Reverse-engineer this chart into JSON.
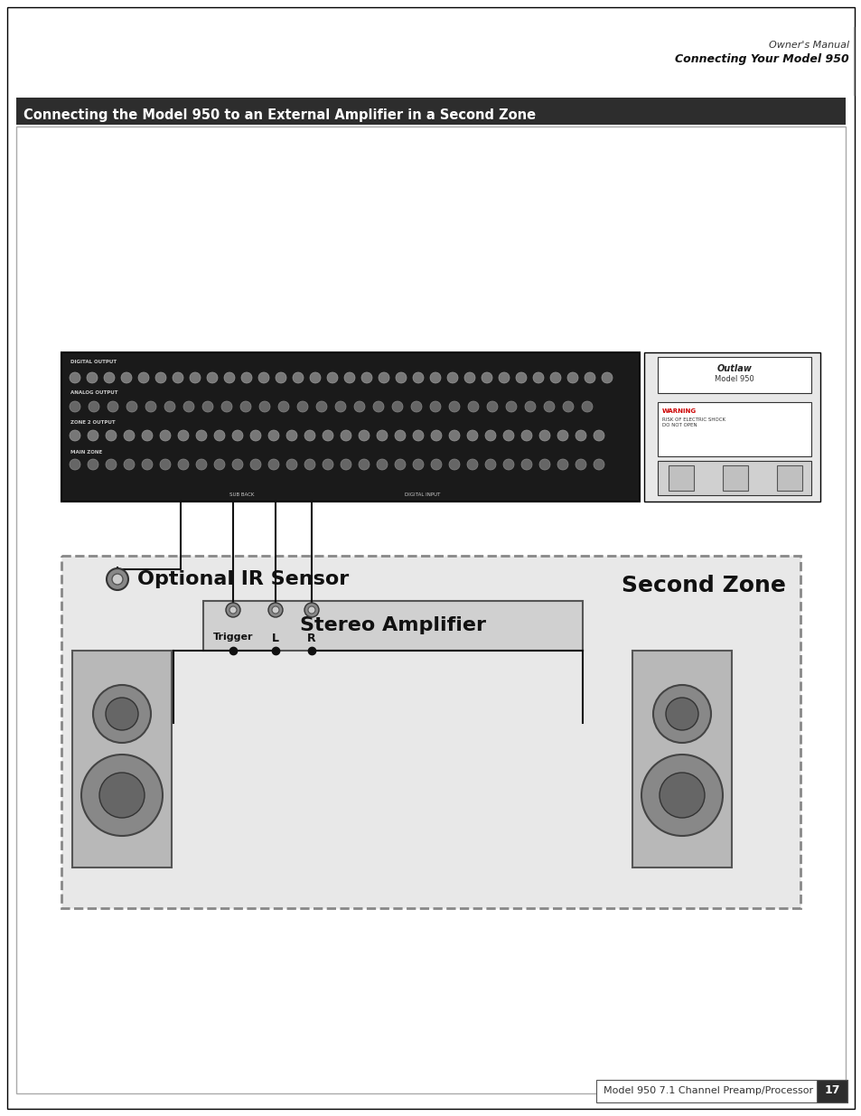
{
  "page_bg": "#ffffff",
  "border_color": "#000000",
  "header_text_line1": "Owner's Manual",
  "header_text_line2": "Connecting Your Model 950",
  "title_bar_text": "Connecting the Model 950 to an External Amplifier in a Second Zone",
  "title_bar_bg": "#2d2d2d",
  "title_bar_text_color": "#ffffff",
  "footer_text": "Model 950 7.1 Channel Preamp/Processor",
  "footer_page": "17",
  "second_zone_label": "Second Zone",
  "ir_sensor_label": "Optional IR Sensor",
  "stereo_amp_label": "Stereo Amplifier",
  "trigger_label": "Trigger",
  "l_label": "L",
  "r_label": "R",
  "dashed_box_color": "#888888",
  "amplifier_box_color": "#c8c8c8",
  "speaker_color": "#c8c8c8",
  "line_color": "#000000",
  "connector_color": "#444444"
}
